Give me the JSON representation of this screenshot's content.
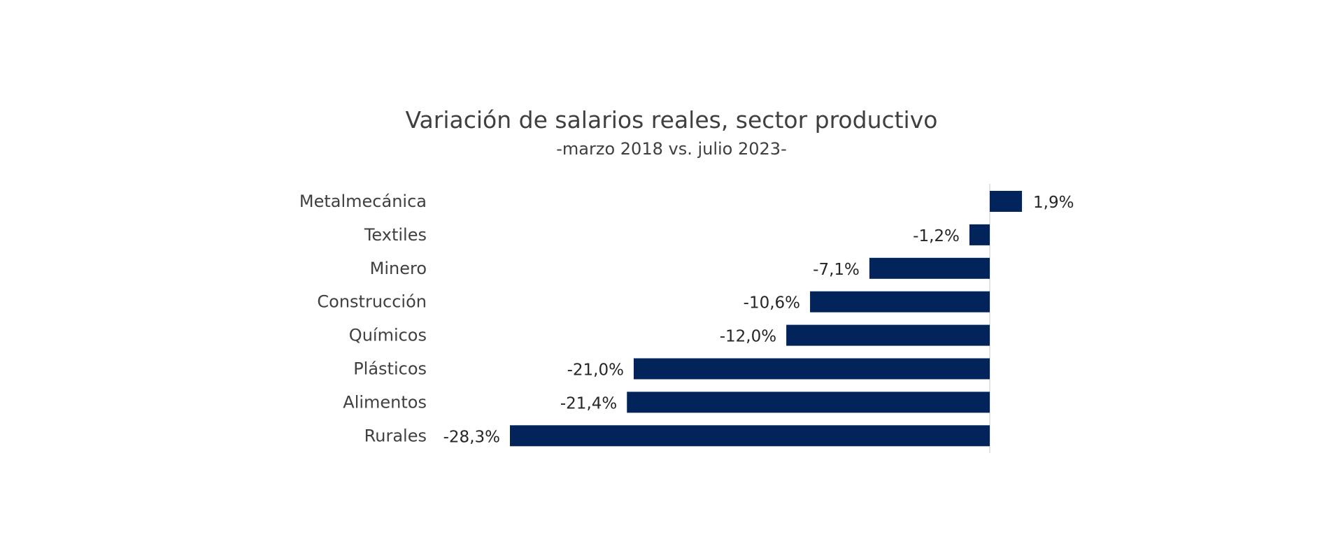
{
  "chart_data": {
    "type": "bar",
    "orientation": "horizontal",
    "title": "Variación de salarios reales, sector productivo",
    "subtitle": "-marzo 2018 vs. julio 2023-",
    "categories": [
      "Metalmecánica",
      "Textiles",
      "Minero",
      "Construcción",
      "Químicos",
      "Plásticos",
      "Alimentos",
      "Rurales"
    ],
    "values": [
      1.9,
      -1.2,
      -7.1,
      -10.6,
      -12.0,
      -21.0,
      -21.4,
      -28.3
    ],
    "value_labels": [
      "1,9%",
      "-1,2%",
      "-7,1%",
      "-10,6%",
      "-12,0%",
      "-21,0%",
      "-21,4%",
      "-28,3%"
    ],
    "bar_color": "#02245a",
    "axis_color": "#d9d9d9",
    "xlabel": "",
    "ylabel": "",
    "grid": false,
    "legend": "none"
  }
}
